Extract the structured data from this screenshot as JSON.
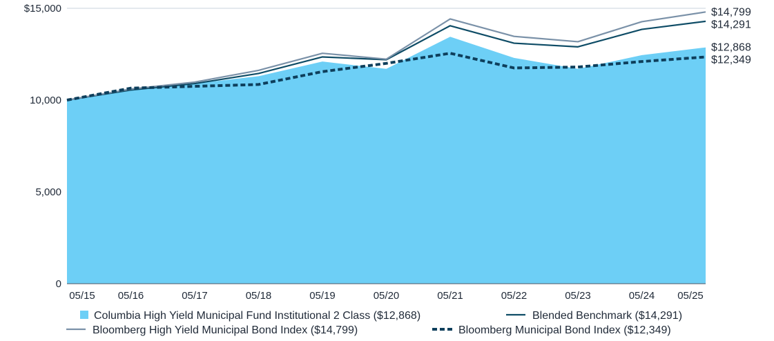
{
  "chart_data": {
    "type": "area",
    "x": [
      "05/15",
      "05/16",
      "05/17",
      "05/18",
      "05/19",
      "05/20",
      "05/21",
      "05/22",
      "05/23",
      "05/24",
      "05/25"
    ],
    "ylim": [
      0,
      15000
    ],
    "yticks": [
      0,
      5000,
      10000,
      15000
    ],
    "ytick_labels": [
      "0",
      "5,000",
      "10,000",
      "$15,000"
    ],
    "grid": "horizontal",
    "legend_position": "bottom",
    "series": [
      {
        "name": "Columbia High Yield Municipal Fund Institutional 2 Class ($12,868)",
        "kind": "area",
        "color": "#6dcff6",
        "end_label": "$12,868",
        "values": [
          10000,
          10650,
          10900,
          11300,
          12100,
          11700,
          13450,
          12300,
          11700,
          12450,
          12868
        ]
      },
      {
        "name": "Blended Benchmark ($14,291)",
        "kind": "line",
        "color": "#0e4c66",
        "end_label": "$14,291",
        "values": [
          10000,
          10550,
          10900,
          11450,
          12350,
          12200,
          14050,
          13100,
          12900,
          13850,
          14291
        ]
      },
      {
        "name": "Bloomberg High Yield Municipal Bond Index ($14,799)",
        "kind": "line",
        "color": "#7a91a8",
        "end_label": "$14,799",
        "values": [
          10000,
          10600,
          10980,
          11620,
          12550,
          12230,
          14420,
          13470,
          13180,
          14270,
          14799
        ]
      },
      {
        "name": "Bloomberg Municipal Bond Index ($12,349)",
        "kind": "dashed",
        "color": "#0e3f5c",
        "end_label": "$12,349",
        "values": [
          10000,
          10650,
          10750,
          10850,
          11550,
          12000,
          12550,
          11750,
          11800,
          12100,
          12349
        ]
      }
    ]
  }
}
